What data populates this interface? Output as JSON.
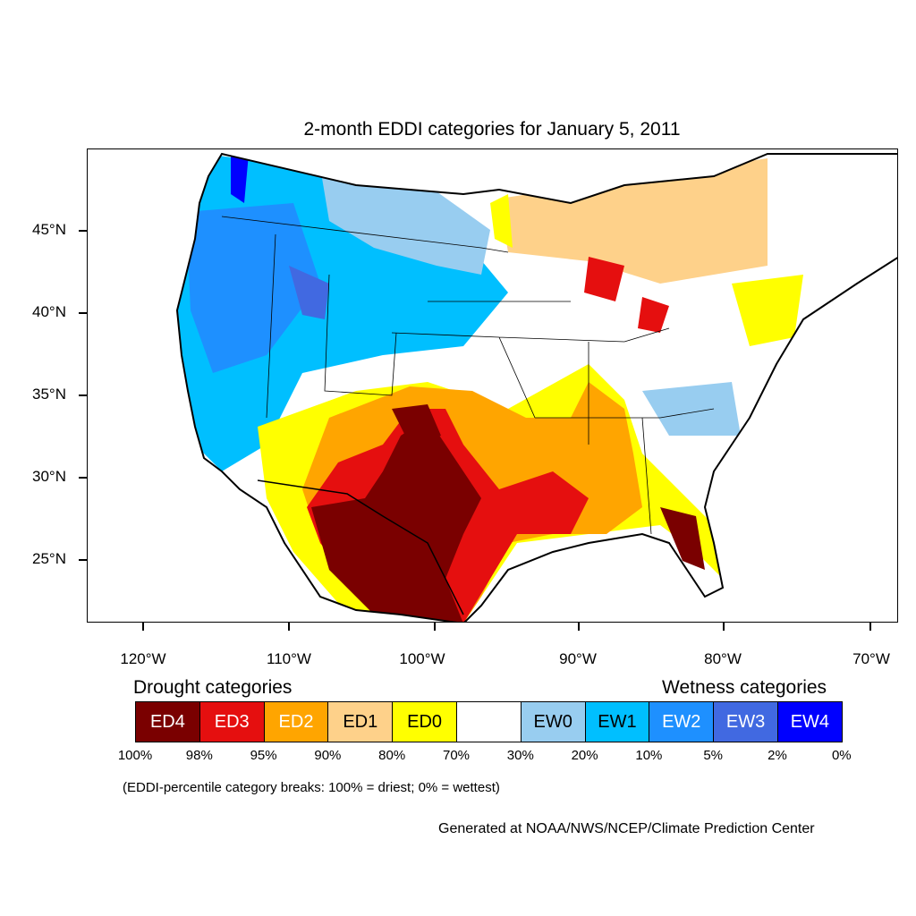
{
  "title": "2-month EDDI categories for January 5, 2011",
  "axes": {
    "lat_labels": [
      "45°N",
      "40°N",
      "35°N",
      "30°N",
      "25°N"
    ],
    "lon_labels": [
      "120°W",
      "110°W",
      "100°W",
      "90°W",
      "80°W",
      "70°W"
    ]
  },
  "legend": {
    "drought_heading": "Drought categories",
    "wetness_heading": "Wetness categories",
    "categories": [
      {
        "label": "ED4",
        "color": "#7a0000",
        "text_color": "#ffffff"
      },
      {
        "label": "ED3",
        "color": "#e50f0f",
        "text_color": "#ffffff"
      },
      {
        "label": "ED2",
        "color": "#ffa500",
        "text_color": "#ffffff"
      },
      {
        "label": "ED1",
        "color": "#fed18a",
        "text_color": "#000000"
      },
      {
        "label": "ED0",
        "color": "#ffff00",
        "text_color": "#000000"
      },
      {
        "label": "",
        "color": "#ffffff",
        "text_color": "#000000"
      },
      {
        "label": "EW0",
        "color": "#98cdf0",
        "text_color": "#000000"
      },
      {
        "label": "EW1",
        "color": "#00bfff",
        "text_color": "#000000"
      },
      {
        "label": "EW2",
        "color": "#1e90ff",
        "text_color": "#ffffff"
      },
      {
        "label": "EW3",
        "color": "#4169e1",
        "text_color": "#ffffff"
      },
      {
        "label": "EW4",
        "color": "#0000ff",
        "text_color": "#ffffff"
      }
    ],
    "breaks": [
      "100%",
      "98%",
      "95%",
      "90%",
      "80%",
      "70%",
      "30%",
      "20%",
      "10%",
      "5%",
      "2%",
      "0%"
    ]
  },
  "note": "(EDDI-percentile category breaks: 100% = driest; 0% = wettest)",
  "credit": "Generated at NOAA/NWS/NCEP/Climate Prediction Center"
}
